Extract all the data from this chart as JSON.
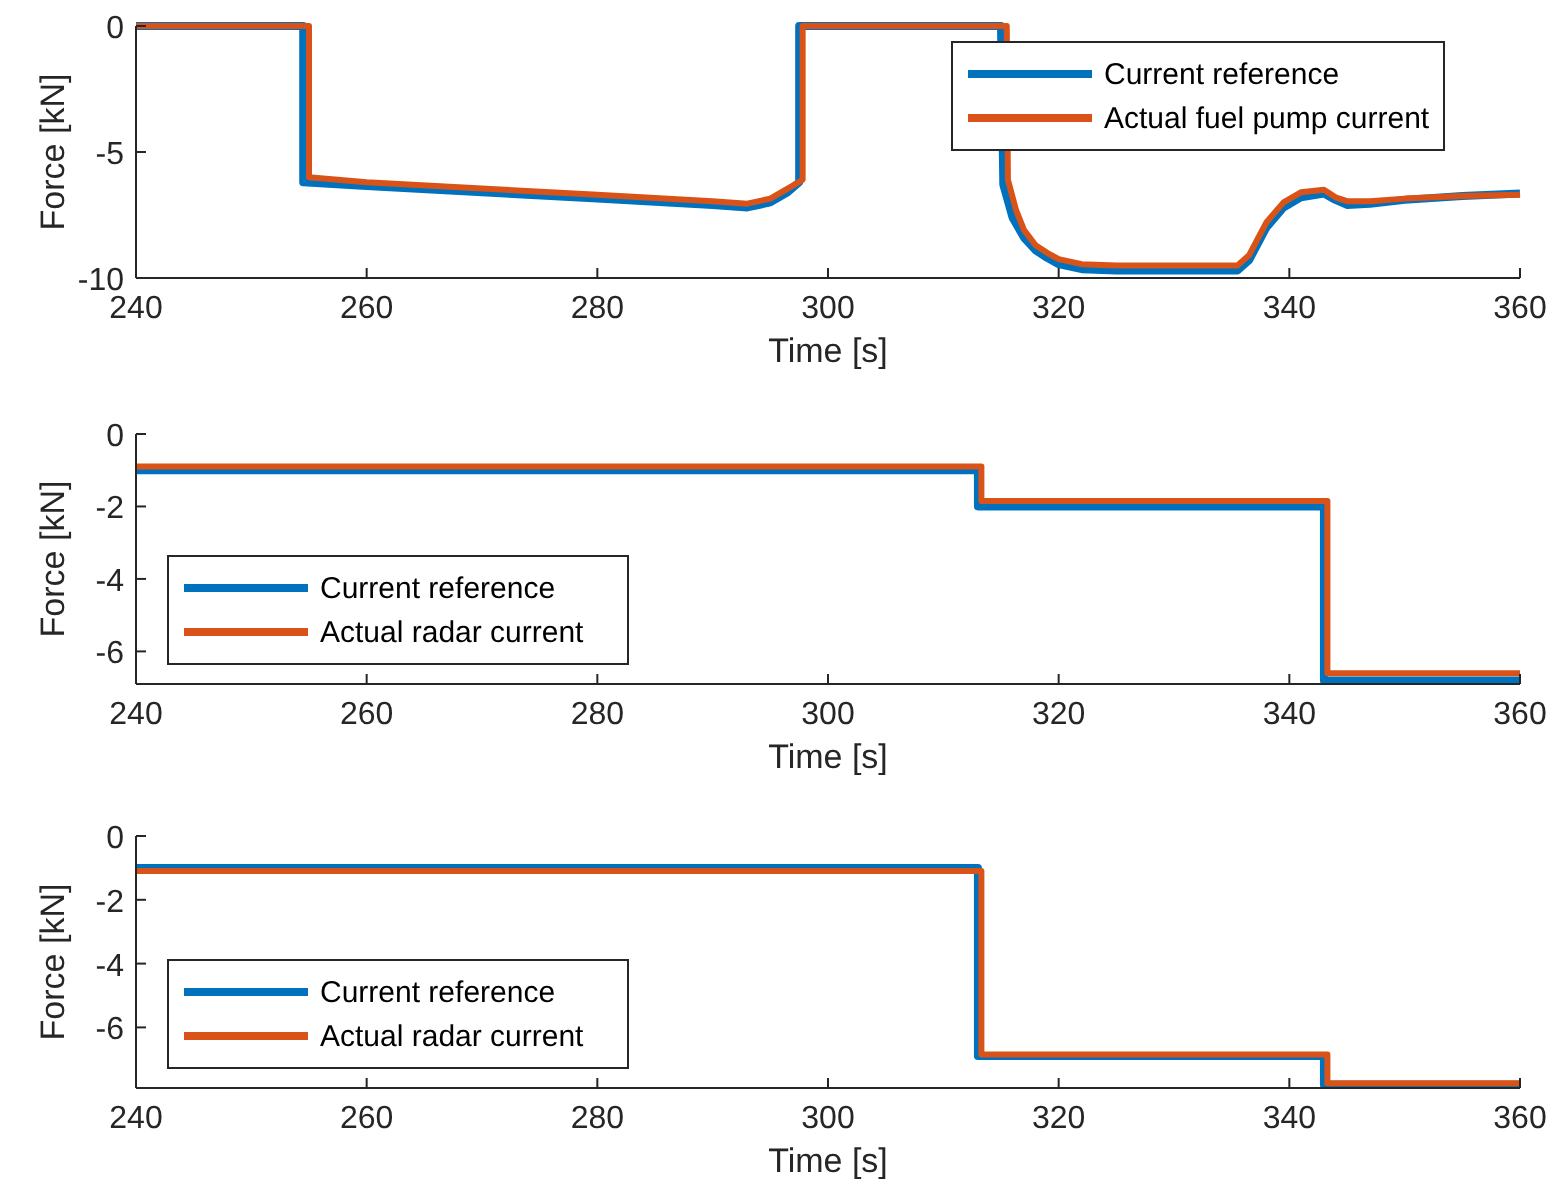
{
  "chart_data": [
    {
      "type": "line",
      "xlabel": "Time [s]",
      "ylabel": "Force [kN]",
      "xlim": [
        240,
        360
      ],
      "xticks": [
        240,
        260,
        280,
        300,
        320,
        340,
        360
      ],
      "ylim": [
        -10,
        0
      ],
      "yticks": [
        -10,
        -5,
        0
      ],
      "legend": "top right",
      "grid": false,
      "series": [
        {
          "name": "Current reference",
          "color": "#0072bd",
          "x": [
            240,
            254.5,
            254.5,
            260,
            270,
            280,
            290,
            293,
            295,
            296.5,
            297.5,
            297.5,
            315,
            315.2,
            316,
            317,
            318,
            319,
            320,
            322,
            325,
            330,
            335.5,
            336.5,
            338,
            339.5,
            341,
            343,
            344,
            345,
            347,
            350,
            355,
            360
          ],
          "values": [
            0,
            0,
            -6.2,
            -6.35,
            -6.6,
            -6.85,
            -7.1,
            -7.2,
            -7.0,
            -6.6,
            -6.2,
            0,
            0,
            -6.3,
            -7.6,
            -8.4,
            -8.9,
            -9.2,
            -9.45,
            -9.65,
            -9.7,
            -9.7,
            -9.7,
            -9.3,
            -8.0,
            -7.2,
            -6.8,
            -6.65,
            -6.9,
            -7.1,
            -7.05,
            -6.9,
            -6.75,
            -6.65
          ]
        },
        {
          "name": "Actual fuel pump current",
          "color": "#d95319",
          "x": [
            240,
            255,
            255,
            260,
            270,
            280,
            290,
            293,
            295,
            296.5,
            297.8,
            297.8,
            315.5,
            315.6,
            316.3,
            317,
            318,
            319,
            320,
            322,
            325,
            330,
            335.5,
            336.5,
            338,
            339.5,
            341,
            343,
            344,
            345,
            347,
            350,
            355,
            360
          ],
          "values": [
            0,
            0,
            -6.0,
            -6.2,
            -6.45,
            -6.7,
            -6.95,
            -7.05,
            -6.85,
            -6.45,
            -6.1,
            0,
            0,
            -6.1,
            -7.3,
            -8.1,
            -8.7,
            -9.0,
            -9.25,
            -9.45,
            -9.5,
            -9.5,
            -9.5,
            -9.1,
            -7.8,
            -7.0,
            -6.6,
            -6.5,
            -6.8,
            -6.95,
            -6.95,
            -6.85,
            -6.75,
            -6.7
          ]
        }
      ]
    },
    {
      "type": "line",
      "xlabel": "Time [s]",
      "ylabel": "Force [kN]",
      "xlim": [
        240,
        360
      ],
      "xticks": [
        240,
        260,
        280,
        300,
        320,
        340,
        360
      ],
      "ylim": [
        -6.9,
        0
      ],
      "yticks": [
        -6,
        -4,
        -2,
        0
      ],
      "legend": "bottom left",
      "grid": false,
      "series": [
        {
          "name": "Current reference",
          "color": "#0072bd",
          "x": [
            240,
            313,
            313,
            343,
            343,
            360
          ],
          "values": [
            -1,
            -1,
            -2,
            -2,
            -6.8,
            -6.8
          ]
        },
        {
          "name": "Actual radar current",
          "color": "#d95319",
          "x": [
            240,
            313.3,
            313.3,
            343.3,
            343.3,
            360
          ],
          "values": [
            -0.9,
            -0.9,
            -1.85,
            -1.85,
            -6.6,
            -6.6
          ]
        }
      ]
    },
    {
      "type": "line",
      "xlabel": "Time [s]",
      "ylabel": "Force [kN]",
      "xlim": [
        240,
        360
      ],
      "xticks": [
        240,
        260,
        280,
        300,
        320,
        340,
        360
      ],
      "ylim": [
        -7.9,
        0
      ],
      "yticks": [
        -6,
        -4,
        -2,
        0
      ],
      "legend": "bottom left",
      "grid": false,
      "series": [
        {
          "name": "Current reference",
          "color": "#0072bd",
          "x": [
            240,
            313,
            313,
            343,
            343,
            360
          ],
          "values": [
            -1,
            -1,
            -6.9,
            -6.9,
            -7.8,
            -7.8
          ]
        },
        {
          "name": "Actual radar current",
          "color": "#d95319",
          "x": [
            240,
            313.3,
            313.3,
            343.3,
            343.3,
            360
          ],
          "values": [
            -1.1,
            -1.1,
            -6.85,
            -6.85,
            -7.75,
            -7.75
          ]
        }
      ]
    }
  ]
}
